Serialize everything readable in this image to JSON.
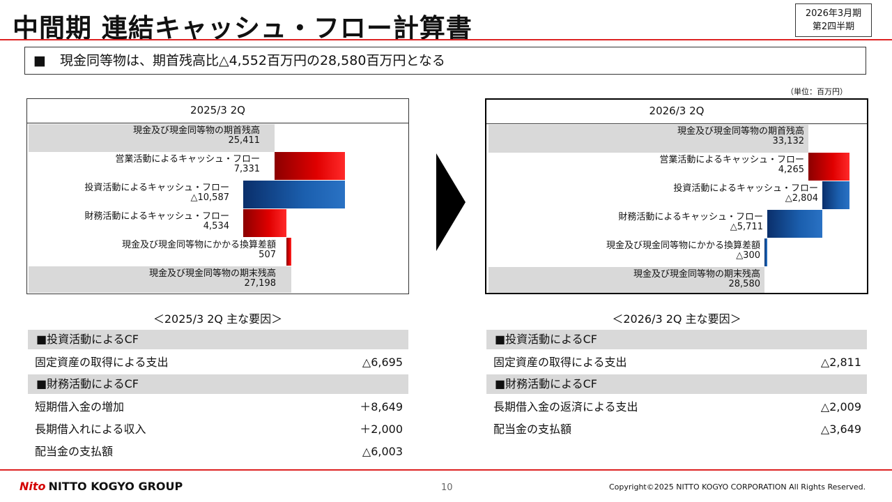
{
  "header": {
    "title": "中間期 連結キャッシュ・フロー計算書",
    "period_line1": "2026年3月期",
    "period_line2": "第2四半期"
  },
  "summary": {
    "bullet": "■",
    "text": "現金同等物は、期首残高比△4,552百万円の28,580百万円となる"
  },
  "unit_note": "（単位：百万円）",
  "colors": {
    "accent_red": "#d22222",
    "bar_red": "#e00000",
    "bar_blue": "#1b5fae",
    "gray_bar": "#d9d9d9"
  },
  "left_chart": {
    "heading": "2025/3 2Q",
    "items": [
      {
        "label": "現金及び現金同等物の期首残高",
        "value": "25,411"
      },
      {
        "label": "営業活動によるキャッシュ・フロー",
        "value": "7,331"
      },
      {
        "label": "投資活動によるキャッシュ・フロー",
        "value": "△10,587"
      },
      {
        "label": "財務活動によるキャッシュ・フロー",
        "value": "4,534"
      },
      {
        "label": "現金及び現金同等物にかかる換算差額",
        "value": "507"
      },
      {
        "label": "現金及び現金同等物の期末残高",
        "value": "27,198"
      }
    ]
  },
  "right_chart": {
    "heading": "2026/3 2Q",
    "items": [
      {
        "label": "現金及び現金同等物の期首残高",
        "value": "33,132"
      },
      {
        "label": "営業活動によるキャッシュ・フロー",
        "value": "4,265"
      },
      {
        "label": "投資活動によるキャッシュ・フロー",
        "value": "△2,804"
      },
      {
        "label": "財務活動によるキャッシュ・フロー",
        "value": "△5,711"
      },
      {
        "label": "現金及び現金同等物にかかる換算差額",
        "value": "△300"
      },
      {
        "label": "現金及び現金同等物の期末残高",
        "value": "28,580"
      }
    ]
  },
  "left_factors": {
    "title": "＜2025/3 2Q 主な要因＞",
    "sections": [
      {
        "heading": "■投資活動によるCF",
        "rows": [
          {
            "label": "固定資産の取得による支出",
            "value": "△6,695"
          }
        ]
      },
      {
        "heading": "■財務活動によるCF",
        "rows": [
          {
            "label": "短期借入金の増加",
            "value": "＋8,649"
          },
          {
            "label": "長期借入れによる収入",
            "value": "＋2,000"
          },
          {
            "label": "配当金の支払額",
            "value": "△6,003"
          }
        ]
      }
    ]
  },
  "right_factors": {
    "title": "＜2026/3 2Q 主な要因＞",
    "sections": [
      {
        "heading": "■投資活動によるCF",
        "rows": [
          {
            "label": "固定資産の取得による支出",
            "value": "△2,811"
          }
        ]
      },
      {
        "heading": "■財務活動によるCF",
        "rows": [
          {
            "label": "長期借入金の返済による支出",
            "value": "△2,009"
          },
          {
            "label": "配当金の支払額",
            "value": "△3,649"
          }
        ]
      }
    ]
  },
  "footer": {
    "logo_mark": "Nito",
    "logo_text": "NITTO KOGYO GROUP",
    "page_number": "10",
    "copyright": "Copyright©2025 NITTO KOGYO CORPORATION All Rights Reserved."
  }
}
